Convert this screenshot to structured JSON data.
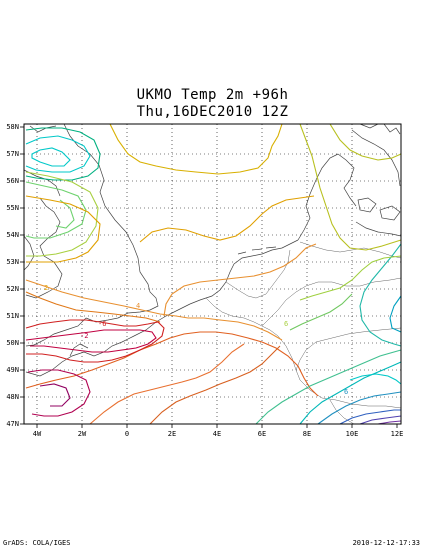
{
  "title": "UKMO Temp 2m  +96h",
  "subtitle": "Thu,16DEC2010 12Z",
  "footer_left": "GrADS: COLA/IGES",
  "footer_right": "2010-12-12-17:33",
  "x_ticks": [
    "4W",
    "2W",
    "0",
    "2E",
    "4E",
    "6E",
    "8E",
    "10E",
    "12E"
  ],
  "y_ticks": [
    "47N",
    "48N",
    "49N",
    "50N",
    "51N",
    "52N",
    "53N",
    "54N",
    "55N",
    "56N",
    "57N",
    "58N"
  ],
  "contour_labels": [
    "2",
    "-2",
    "-6",
    "4",
    "6",
    "6"
  ]
}
